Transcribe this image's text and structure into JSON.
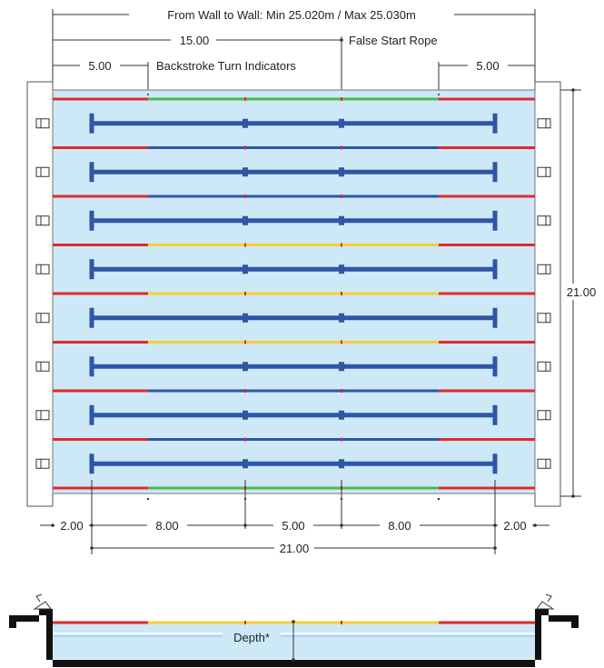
{
  "labels": {
    "wall_to_wall": "From Wall to Wall: Min 25.020m / Max 25.030m",
    "false_start_dist": "15.00",
    "false_start_rope": "False Start Rope",
    "backstroke_left_dist": "5.00",
    "backstroke_turn_indicators": "Backstroke Turn Indicators",
    "backstroke_right_dist": "5.00",
    "pool_width": "21.00",
    "bottom_left_end": "2.00",
    "bottom_mid_left": "8.00",
    "bottom_center": "5.00",
    "bottom_mid_right": "8.00",
    "bottom_right_end": "2.00",
    "bottom_total": "21.00",
    "depth": "Depth*"
  },
  "pool": {
    "lane_count": 8,
    "rope_segment_colors": [
      [
        "red",
        "green",
        "green",
        "green",
        "green",
        "red"
      ],
      [
        "red",
        "blue",
        "blue",
        "blue",
        "blue",
        "red"
      ],
      [
        "red",
        "blue",
        "blue",
        "blue",
        "blue",
        "red"
      ],
      [
        "red",
        "yellow",
        "yellow",
        "yellow",
        "yellow",
        "red"
      ],
      [
        "red",
        "yellow",
        "yellow",
        "yellow",
        "yellow",
        "red"
      ],
      [
        "red",
        "yellow",
        "yellow",
        "yellow",
        "yellow",
        "red"
      ],
      [
        "red",
        "blue",
        "blue",
        "blue",
        "blue",
        "red"
      ],
      [
        "red",
        "blue",
        "blue",
        "blue",
        "blue",
        "red"
      ],
      [
        "red",
        "green",
        "green",
        "green",
        "green",
        "red"
      ]
    ],
    "section_rope_colors": [
      "red",
      "yellow",
      "yellow",
      "yellow",
      "yellow",
      "red"
    ]
  },
  "colors": {
    "water": "#cde8f7",
    "red": "#e02a2a",
    "green": "#4fb848",
    "yellow": "#f5cf35",
    "blue": "#2f56a6",
    "lane_marking": "#2f56a6",
    "wall": "#ffffff",
    "floor": "#111111"
  }
}
